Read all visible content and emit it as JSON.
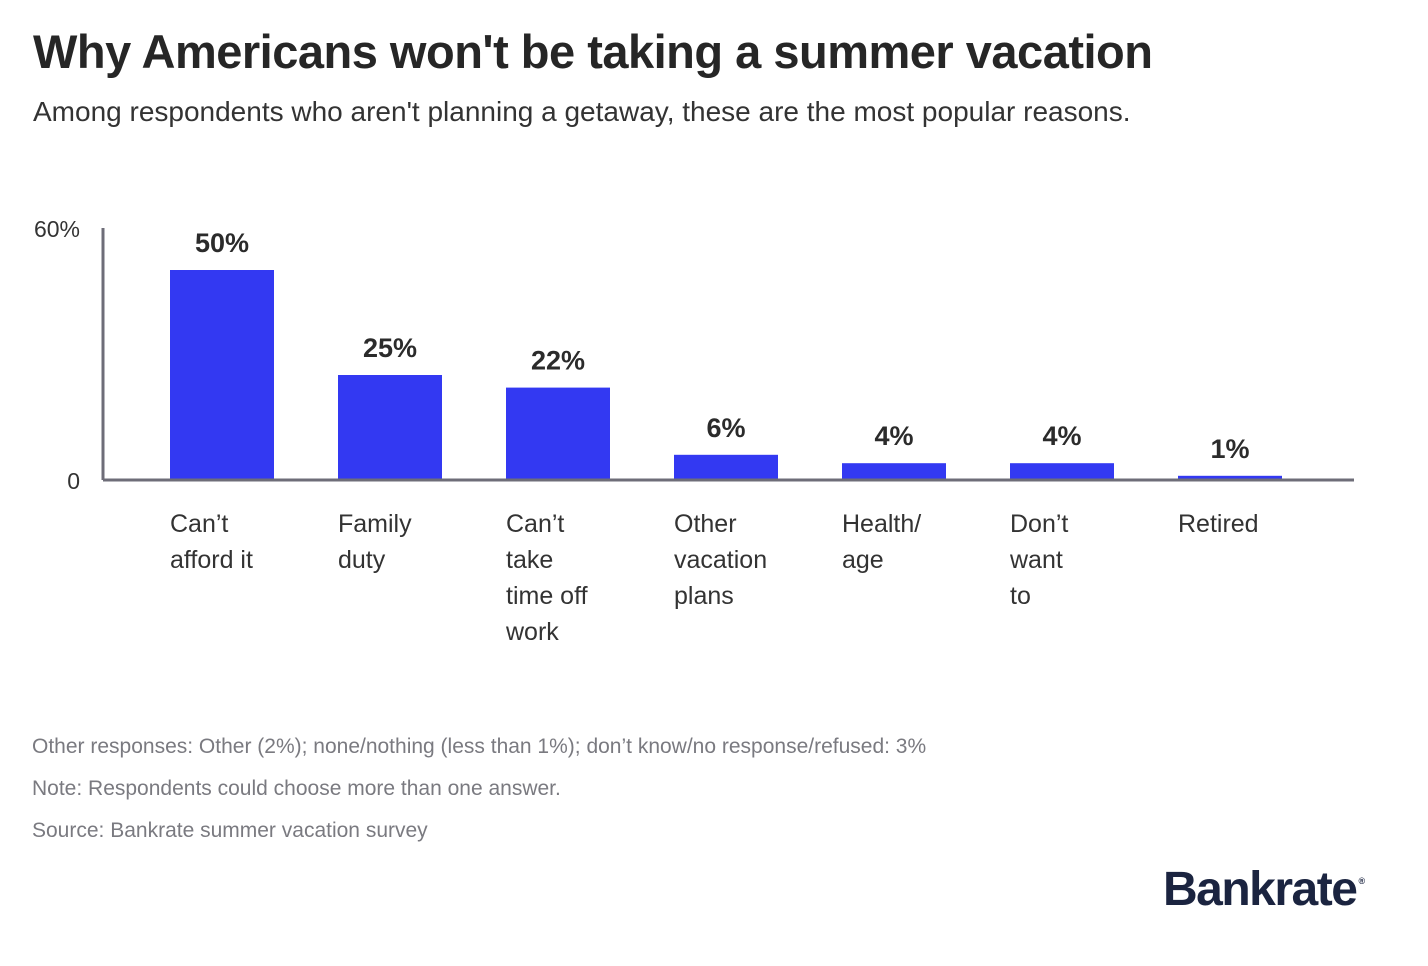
{
  "chart_data": {
    "type": "bar",
    "title": "Why Americans won't be taking a summer vacation",
    "subtitle": "Among respondents who aren't planning a getaway, these are the most popular reasons.",
    "categories": [
      [
        "Can’t",
        "afford it"
      ],
      [
        "Family",
        "duty"
      ],
      [
        "Can’t",
        "take",
        "time off",
        "work"
      ],
      [
        "Other",
        "vacation",
        "plans"
      ],
      [
        "Health/",
        "age"
      ],
      [
        "Don’t",
        "want",
        "to"
      ],
      [
        "Retired"
      ]
    ],
    "values": [
      50,
      25,
      22,
      6,
      4,
      4,
      1
    ],
    "data_labels": [
      "50%",
      "25%",
      "22%",
      "6%",
      "4%",
      "4%",
      "1%"
    ],
    "ylim": [
      0,
      60
    ],
    "yticks": [
      {
        "value": 0,
        "label": "0"
      },
      {
        "value": 60,
        "label": "60%"
      }
    ],
    "xlabel": "",
    "ylabel": "",
    "grid": false,
    "colors": {
      "bar": "#3339f2",
      "axis": "#6e6d78"
    }
  },
  "footnotes": [
    "Other responses: Other (2%); none/nothing (less than 1%); don’t know/no response/refused: 3%",
    "Note: Respondents could choose more than one answer.",
    "Source: Bankrate summer vacation survey"
  ],
  "logo": {
    "text": "Bankrate",
    "mark": "®"
  }
}
